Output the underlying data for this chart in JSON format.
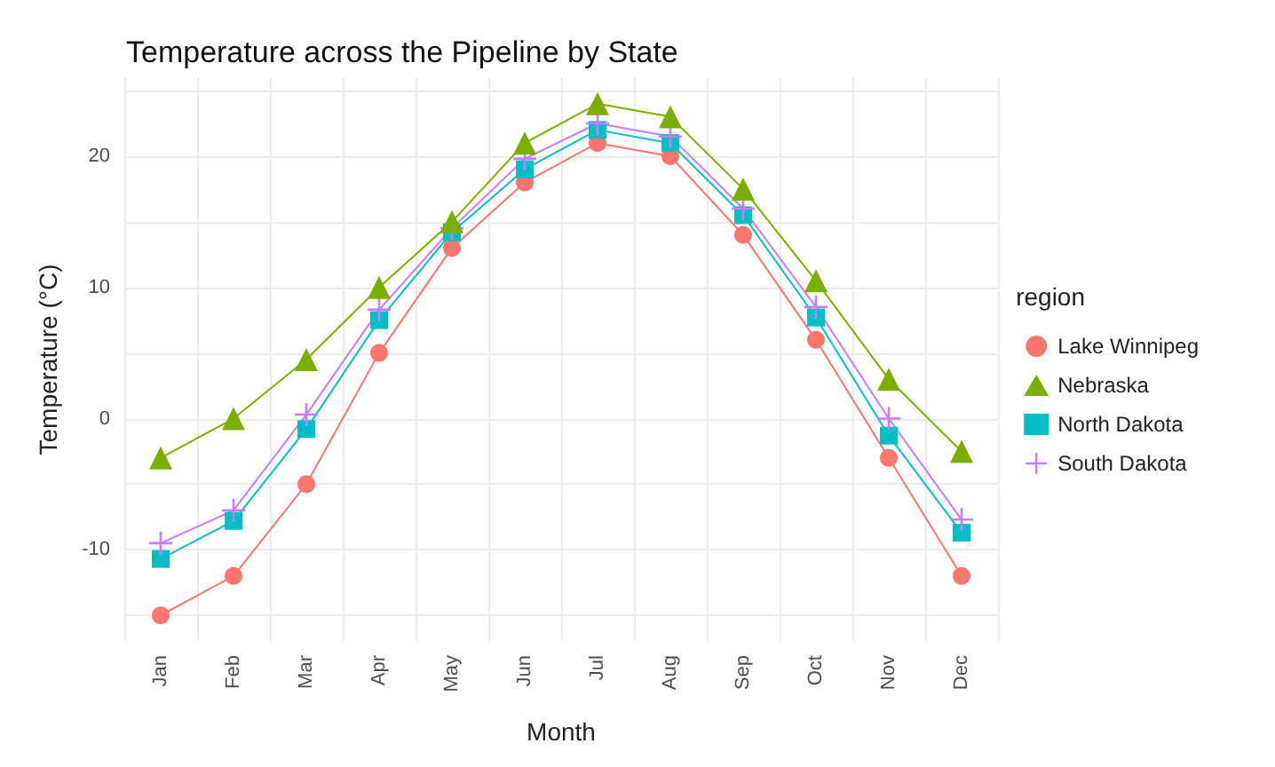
{
  "chart_data": {
    "type": "line",
    "title": "Temperature across the Pipeline by State",
    "xlabel": "Month",
    "ylabel": "Temperature (°C)",
    "legend_title": "region",
    "legend": "right",
    "categories": [
      "Jan",
      "Feb",
      "Mar",
      "Apr",
      "May",
      "Jun",
      "Jul",
      "Aug",
      "Sep",
      "Oct",
      "Nov",
      "Dec"
    ],
    "series": [
      {
        "name": "Lake Winnipeg",
        "color": "#f8766d",
        "marker": "circle",
        "values": [
          -15,
          -12,
          -5,
          5,
          13,
          18,
          21,
          20,
          14,
          6,
          -3,
          -12
        ]
      },
      {
        "name": "Nebraska",
        "color": "#7cae00",
        "marker": "triangle",
        "values": [
          -3,
          0,
          4.5,
          10,
          15,
          21,
          24,
          23,
          17.5,
          10.5,
          3,
          -2.5
        ]
      },
      {
        "name": "North Dakota",
        "color": "#00bfc4",
        "marker": "square",
        "values": [
          -10.7,
          -7.8,
          -0.8,
          7.5,
          14.2,
          19,
          22,
          21,
          15.5,
          7.7,
          -1.3,
          -8.7
        ]
      },
      {
        "name": "South Dakota",
        "color": "#c77cff",
        "marker": "cross",
        "values": [
          -9.5,
          -7,
          0.3,
          8.3,
          14.5,
          19.8,
          22.5,
          21.5,
          16,
          8.5,
          0,
          -7.7
        ]
      }
    ],
    "ylim": [
      -16.95,
      25.95
    ],
    "yticks": [
      {
        "value": -15,
        "label": null
      },
      -10,
      {
        "value": -5,
        "label": null
      },
      0,
      {
        "value": 5,
        "label": null
      },
      10,
      {
        "value": 15,
        "label": null
      },
      20,
      {
        "value": 25,
        "label": null
      }
    ],
    "grid": true,
    "line_style": "solid"
  }
}
